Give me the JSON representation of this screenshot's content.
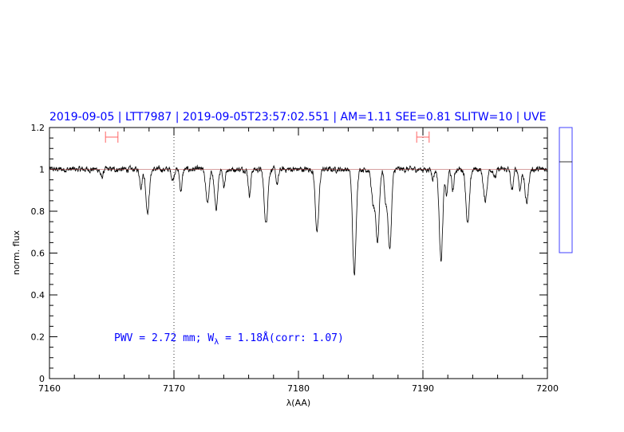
{
  "chart_data": {
    "type": "line",
    "title": "2019-09-05 | LTT7987 | 2019-09-05T23:57:02.551 | AM=1.11 SEE=0.81 SLITW=10 | UVE",
    "xlabel": "λ(AA)",
    "ylabel": "norm. flux",
    "xlim": [
      7160,
      7200
    ],
    "ylim": [
      0,
      1.2
    ],
    "x_ticks": [
      "7160",
      "7170",
      "7180",
      "7190",
      "7200"
    ],
    "y_ticks": [
      "0",
      "0.2",
      "0.4",
      "0.6",
      "0.8",
      "1",
      "1.2"
    ],
    "continuum_level": 1.0,
    "reference_lines_x": [
      7170,
      7190
    ],
    "integration_ranges": [
      [
        7164.5,
        7165.5
      ],
      [
        7189.5,
        7190.5
      ]
    ],
    "annotation": {
      "pwv": "PWV = 2.72 mm; W",
      "sub": "λ",
      "rest": " = 1.18Å(corr: 1.07)"
    },
    "absorption_minima": [
      {
        "wavelength": 7164.2,
        "flux": 0.96
      },
      {
        "wavelength": 7167.35,
        "flux": 0.92
      },
      {
        "wavelength": 7167.88,
        "flux": 0.8
      },
      {
        "wavelength": 7169.9,
        "flux": 0.95
      },
      {
        "wavelength": 7170.56,
        "flux": 0.9
      },
      {
        "wavelength": 7172.69,
        "flux": 0.845
      },
      {
        "wavelength": 7173.38,
        "flux": 0.815
      },
      {
        "wavelength": 7174.0,
        "flux": 0.92
      },
      {
        "wavelength": 7176.07,
        "flux": 0.88
      },
      {
        "wavelength": 7177.39,
        "flux": 0.74
      },
      {
        "wavelength": 7178.3,
        "flux": 0.93
      },
      {
        "wavelength": 7181.5,
        "flux": 0.7
      },
      {
        "wavelength": 7184.49,
        "flux": 0.495
      },
      {
        "wavelength": 7186.0,
        "flux": 0.84
      },
      {
        "wavelength": 7186.35,
        "flux": 0.66
      },
      {
        "wavelength": 7187.0,
        "flux": 0.86
      },
      {
        "wavelength": 7187.33,
        "flux": 0.615
      },
      {
        "wavelength": 7190.8,
        "flux": 0.96
      },
      {
        "wavelength": 7191.45,
        "flux": 0.57
      },
      {
        "wavelength": 7191.9,
        "flux": 0.88
      },
      {
        "wavelength": 7192.4,
        "flux": 0.9
      },
      {
        "wavelength": 7193.6,
        "flux": 0.74
      },
      {
        "wavelength": 7195.0,
        "flux": 0.85
      },
      {
        "wavelength": 7195.8,
        "flux": 0.96
      },
      {
        "wavelength": 7197.16,
        "flux": 0.895
      },
      {
        "wavelength": 7197.8,
        "flux": 0.905
      },
      {
        "wavelength": 7198.33,
        "flux": 0.84
      }
    ],
    "grid": false,
    "colors": {
      "spectrum": "#000000",
      "title": "#0000ff",
      "markers": "#ff6666",
      "continuum": "#b04040"
    }
  }
}
